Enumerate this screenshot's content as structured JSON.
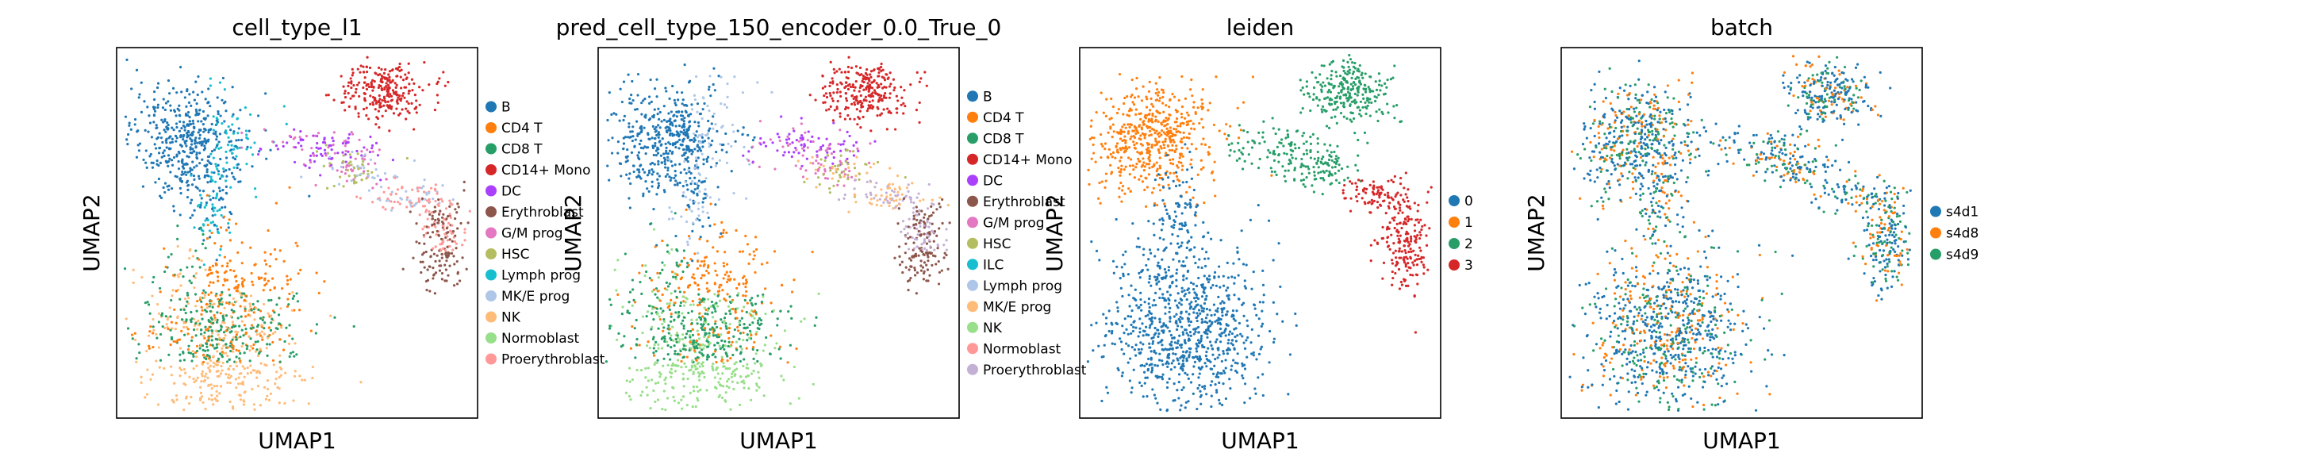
{
  "chart_data": [
    {
      "type": "scatter",
      "title": "cell_type_l1",
      "xlabel": "UMAP1",
      "ylabel": "UMAP2",
      "grid": false,
      "legend_position": "right",
      "legend": [
        {
          "name": "B",
          "color": "#1f77b4"
        },
        {
          "name": "CD4 T",
          "color": "#ff7f0e"
        },
        {
          "name": "CD8 T",
          "color": "#279e68"
        },
        {
          "name": "CD14+ Mono",
          "color": "#d62728"
        },
        {
          "name": "DC",
          "color": "#aa40fc"
        },
        {
          "name": "Erythroblast",
          "color": "#8c564b"
        },
        {
          "name": "G/M prog",
          "color": "#e377c2"
        },
        {
          "name": "HSC",
          "color": "#b5bd61"
        },
        {
          "name": "Lymph prog",
          "color": "#17becf"
        },
        {
          "name": "MK/E prog",
          "color": "#aec7e8"
        },
        {
          "name": "NK",
          "color": "#ffbb78"
        },
        {
          "name": "Normoblast",
          "color": "#98df8a"
        },
        {
          "name": "Proerythroblast",
          "color": "#ff9896"
        }
      ]
    },
    {
      "type": "scatter",
      "title": "pred_cell_type_150_encoder_0.0_True_0",
      "xlabel": "UMAP1",
      "ylabel": "UMAP2",
      "grid": false,
      "legend_position": "right",
      "legend": [
        {
          "name": "B",
          "color": "#1f77b4"
        },
        {
          "name": "CD4 T",
          "color": "#ff7f0e"
        },
        {
          "name": "CD8 T",
          "color": "#279e68"
        },
        {
          "name": "CD14+ Mono",
          "color": "#d62728"
        },
        {
          "name": "DC",
          "color": "#aa40fc"
        },
        {
          "name": "Erythroblast",
          "color": "#8c564b"
        },
        {
          "name": "G/M prog",
          "color": "#e377c2"
        },
        {
          "name": "HSC",
          "color": "#b5bd61"
        },
        {
          "name": "ILC",
          "color": "#17becf"
        },
        {
          "name": "Lymph prog",
          "color": "#aec7e8"
        },
        {
          "name": "MK/E prog",
          "color": "#ffbb78"
        },
        {
          "name": "NK",
          "color": "#98df8a"
        },
        {
          "name": "Normoblast",
          "color": "#ff9896"
        },
        {
          "name": "Proerythroblast",
          "color": "#c5b0d5"
        }
      ]
    },
    {
      "type": "scatter",
      "title": "leiden",
      "xlabel": "UMAP1",
      "ylabel": "UMAP2",
      "grid": false,
      "legend_position": "right",
      "legend": [
        {
          "name": "0",
          "color": "#1f77b4"
        },
        {
          "name": "1",
          "color": "#ff7f0e"
        },
        {
          "name": "2",
          "color": "#279e68"
        },
        {
          "name": "3",
          "color": "#d62728"
        }
      ]
    },
    {
      "type": "scatter",
      "title": "batch",
      "xlabel": "UMAP1",
      "ylabel": "UMAP2",
      "grid": false,
      "legend_position": "right",
      "legend": [
        {
          "name": "s4d1",
          "color": "#1f77b4"
        },
        {
          "name": "s4d8",
          "color": "#ff7f0e"
        },
        {
          "name": "s4d9",
          "color": "#279e68"
        }
      ]
    }
  ]
}
